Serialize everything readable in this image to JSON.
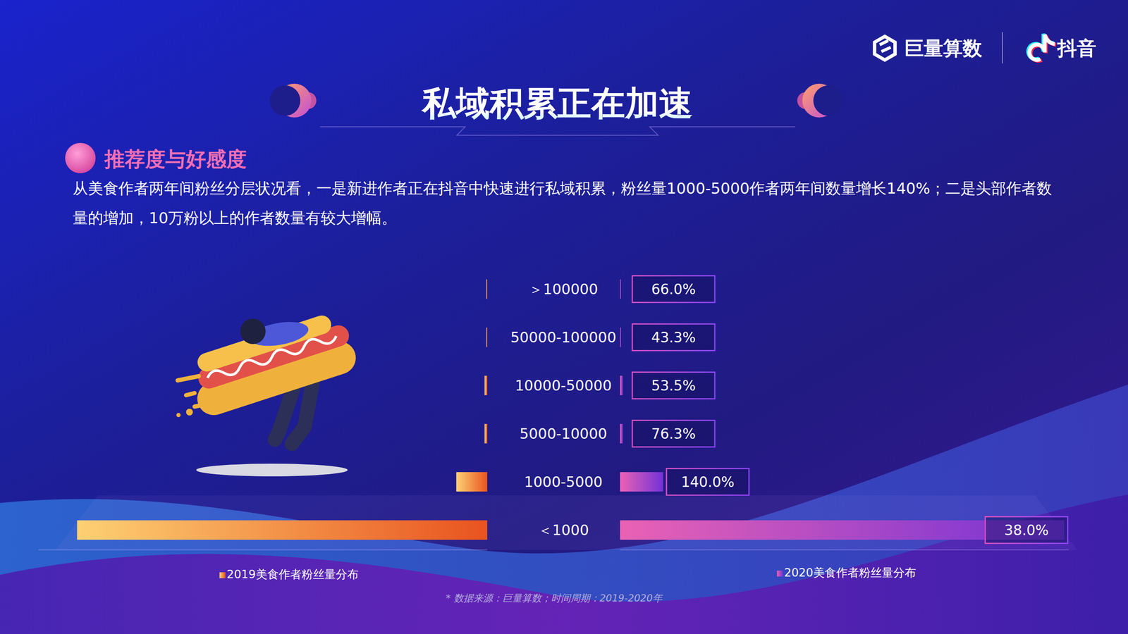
{
  "header": {
    "brands": [
      "巨量算数",
      "抖音"
    ]
  },
  "chart_data": {
    "type": "bar",
    "title": "私域积累正在加速",
    "subtitle": "推荐度与好感度",
    "description": "从美食作者两年间粉丝分层状况看，一是新进作者正在抖音中快速进行私域积累，粉丝量1000-5000作者两年间数量增长140%；二是头部作者数量的增加，10万粉以上的作者数量有较大增幅。",
    "source": "* 数据来源：巨量算数；时间周期：2019-2020年",
    "orientation": "horizontal",
    "categories": [
      "＞100000",
      "50000-100000",
      "10000-50000",
      "5000-10000",
      "1000-5000",
      "＜1000"
    ],
    "series": [
      {
        "name": "2019美食作者粉丝量分布",
        "color": "#e9531f",
        "values": [
          0.2,
          0.2,
          0.6,
          0.6,
          6.9,
          91.4
        ]
      },
      {
        "name": "2020美食作者粉丝量分布",
        "color": "#7232d6",
        "values": [
          0.2,
          0.2,
          0.6,
          0.6,
          9.6,
          99.0
        ]
      }
    ],
    "growth": {
      "values": [
        66.0,
        43.3,
        53.5,
        76.3,
        140.0,
        38.0
      ],
      "value_labels": [
        "66.0%",
        "43.3%",
        "53.5%",
        "76.3%",
        "140.0%",
        "38.0%"
      ]
    },
    "xlim": [
      0,
      100
    ],
    "tick_labels": "y",
    "legend": "bottom"
  }
}
